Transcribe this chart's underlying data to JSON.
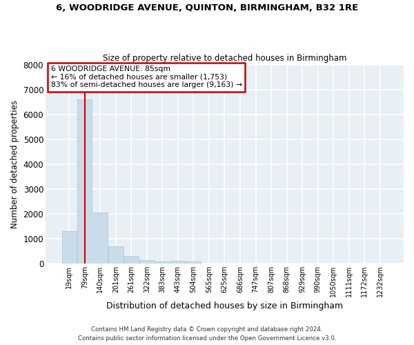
{
  "title": "6, WOODRIDGE AVENUE, QUINTON, BIRMINGHAM, B32 1RE",
  "subtitle": "Size of property relative to detached houses in Birmingham",
  "xlabel": "Distribution of detached houses by size in Birmingham",
  "ylabel": "Number of detached properties",
  "bar_color": "#c9dcea",
  "bar_edgecolor": "#aac5d8",
  "plot_bg_color": "#e8eff5",
  "fig_bg_color": "#ffffff",
  "grid_color": "#ffffff",
  "categories": [
    "19sqm",
    "79sqm",
    "140sqm",
    "201sqm",
    "261sqm",
    "322sqm",
    "383sqm",
    "443sqm",
    "504sqm",
    "565sqm",
    "625sqm",
    "686sqm",
    "747sqm",
    "807sqm",
    "868sqm",
    "929sqm",
    "990sqm",
    "1050sqm",
    "1111sqm",
    "1172sqm",
    "1232sqm"
  ],
  "values": [
    1310,
    6610,
    2060,
    680,
    290,
    135,
    85,
    95,
    75,
    0,
    0,
    0,
    0,
    0,
    0,
    0,
    0,
    0,
    0,
    0,
    0
  ],
  "ylim": [
    0,
    8000
  ],
  "yticks": [
    0,
    1000,
    2000,
    3000,
    4000,
    5000,
    6000,
    7000,
    8000
  ],
  "vline_pos": 1.0,
  "vline_color": "#cc0000",
  "annotation_title": "6 WOODRIDGE AVENUE: 85sqm",
  "annotation_line2": "← 16% of detached houses are smaller (1,753)",
  "annotation_line3": "83% of semi-detached houses are larger (9,163) →",
  "annotation_box_color": "#ffffff",
  "annotation_border_color": "#cc0000",
  "footer1": "Contains HM Land Registry data © Crown copyright and database right 2024.",
  "footer2": "Contains public sector information licensed under the Open Government Licence v3.0."
}
